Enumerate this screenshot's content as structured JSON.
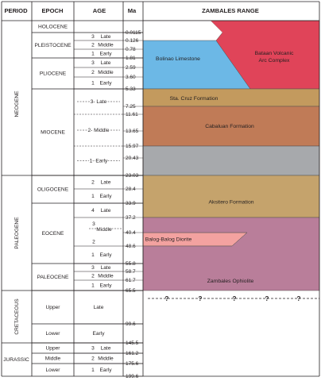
{
  "headers": {
    "period": "PERIOD",
    "epoch": "EPOCH",
    "age": "AGE",
    "ma": "Ma",
    "range": "ZAMBALES RANGE"
  },
  "periods": [
    {
      "label": "NEOGENE",
      "top": 0.0115,
      "bottom": 23.03
    },
    {
      "label": "PALEOGENE",
      "top": 23.03,
      "bottom": 65.5
    },
    {
      "label": "CRETACEOUS",
      "top": 65.5,
      "bottom": 145.5
    },
    {
      "label": "JURASSIC",
      "top": 145.5,
      "bottom": 199.6
    }
  ],
  "epochs": [
    {
      "label": "HOLOCENE",
      "top": 0.0,
      "bottom": 0.0115
    },
    {
      "label": "PLEISTOCENE",
      "top": 0.0115,
      "bottom": 1.81
    },
    {
      "label": "PLIOCENE",
      "top": 1.81,
      "bottom": 5.33
    },
    {
      "label": "MIOCENE",
      "top": 5.33,
      "bottom": 23.03
    },
    {
      "label": "OLIGOCENE",
      "top": 23.03,
      "bottom": 33.9
    },
    {
      "label": "EOCENE",
      "top": 33.9,
      "bottom": 55.8
    },
    {
      "label": "PALEOCENE",
      "top": 55.8,
      "bottom": 65.5
    },
    {
      "label": "Upper",
      "top": 65.5,
      "bottom": 99.6
    },
    {
      "label": "Lower",
      "top": 99.6,
      "bottom": 145.5
    },
    {
      "label": "Upper",
      "top": 145.5,
      "bottom": 161.2
    },
    {
      "label": "Middle",
      "top": 161.2,
      "bottom": 175.6
    },
    {
      "label": "Lower",
      "top": 175.6,
      "bottom": 199.6
    }
  ],
  "ages": [
    {
      "num": "3",
      "name": "Late",
      "top": 0.0115,
      "bottom": 0.126
    },
    {
      "num": "2",
      "name": "Middle",
      "top": 0.126,
      "bottom": 0.78
    },
    {
      "num": "1",
      "name": "Early",
      "top": 0.78,
      "bottom": 1.81
    },
    {
      "num": "3",
      "name": "Late",
      "top": 1.81,
      "bottom": 2.59
    },
    {
      "num": "2",
      "name": "Middle",
      "top": 2.59,
      "bottom": 3.6
    },
    {
      "num": "1",
      "name": "Early",
      "top": 3.6,
      "bottom": 5.33
    },
    {
      "num": "3",
      "name": "Late",
      "top": 5.33,
      "bottom": 11.61,
      "dashed": true
    },
    {
      "num": "2",
      "name": "Middle",
      "top": 11.61,
      "bottom": 15.97,
      "dashed": true
    },
    {
      "num": "1",
      "name": "Early",
      "top": 15.97,
      "bottom": 23.03,
      "dashed": true
    },
    {
      "num": "2",
      "name": "Late",
      "top": 23.03,
      "bottom": 28.4
    },
    {
      "num": "1",
      "name": "Early",
      "top": 28.4,
      "bottom": 33.9
    },
    {
      "num": "4",
      "name": "Late",
      "top": 33.9,
      "bottom": 37.2
    },
    {
      "num": "3",
      "name": "Middle",
      "top": 37.2,
      "bottom": 48.6,
      "split": true,
      "num2": "2"
    },
    {
      "num": "1",
      "name": "Early",
      "top": 48.6,
      "bottom": 55.8
    },
    {
      "num": "3",
      "name": "Late",
      "top": 55.8,
      "bottom": 58.7
    },
    {
      "num": "2",
      "name": "Middle",
      "top": 58.7,
      "bottom": 61.7
    },
    {
      "num": "1",
      "name": "Early",
      "top": 61.7,
      "bottom": 65.5
    },
    {
      "num": "",
      "name": "Late",
      "top": 65.5,
      "bottom": 99.6
    },
    {
      "num": "",
      "name": "Early",
      "top": 99.6,
      "bottom": 145.5
    },
    {
      "num": "3",
      "name": "Late",
      "top": 145.5,
      "bottom": 161.2
    },
    {
      "num": "2",
      "name": "Middle",
      "top": 161.2,
      "bottom": 175.6
    },
    {
      "num": "1",
      "name": "Early",
      "top": 175.6,
      "bottom": 199.6
    }
  ],
  "ma_ticks": [
    "0.0115",
    "0.126",
    "0.78",
    "1.81",
    "2.59",
    "3.60",
    "5.33",
    "7.25",
    "11.61",
    "13.65",
    "15.97",
    "20.43",
    "23.03",
    "28.4",
    "33.9",
    "37.2",
    "40.4",
    "48.6",
    "55.8",
    "58.7",
    "61.7",
    "65.5",
    "99.6",
    "145.5",
    "161.2",
    "175.6",
    "199.6"
  ],
  "formations": [
    {
      "name": "Bolinao Limestone",
      "color": "#6cb8e6",
      "age_top": 0.126,
      "age_bottom": 5.33
    },
    {
      "name": "Bataan Volcanic Arc Complex",
      "color": "#e04459",
      "age_top": 0.0,
      "age_bottom": 5.33
    },
    {
      "name": "Sta. Cruz  Formation",
      "color": "#c39a5e",
      "age_top": 5.33,
      "age_bottom": 7.25
    },
    {
      "name": "Cabaluan Formation",
      "color": "#c07b57",
      "age_top": 7.25,
      "age_bottom": 15.97
    },
    {
      "name": "",
      "color": "#a7a9ac",
      "age_top": 15.97,
      "age_bottom": 23.03
    },
    {
      "name": "Aksitero Formation",
      "color": "#c5a36c",
      "age_top": 23.03,
      "age_bottom": 37.2
    },
    {
      "name": "Balog-Balog Diorite",
      "color": "#f3a2a0",
      "age_top": 40.4,
      "age_bottom": 48.6
    },
    {
      "name": "Zambales Ophiolite",
      "color": "#b97e9a",
      "age_top": 37.2,
      "age_bottom": 65.5
    }
  ],
  "uncertain_marker": "?"
}
